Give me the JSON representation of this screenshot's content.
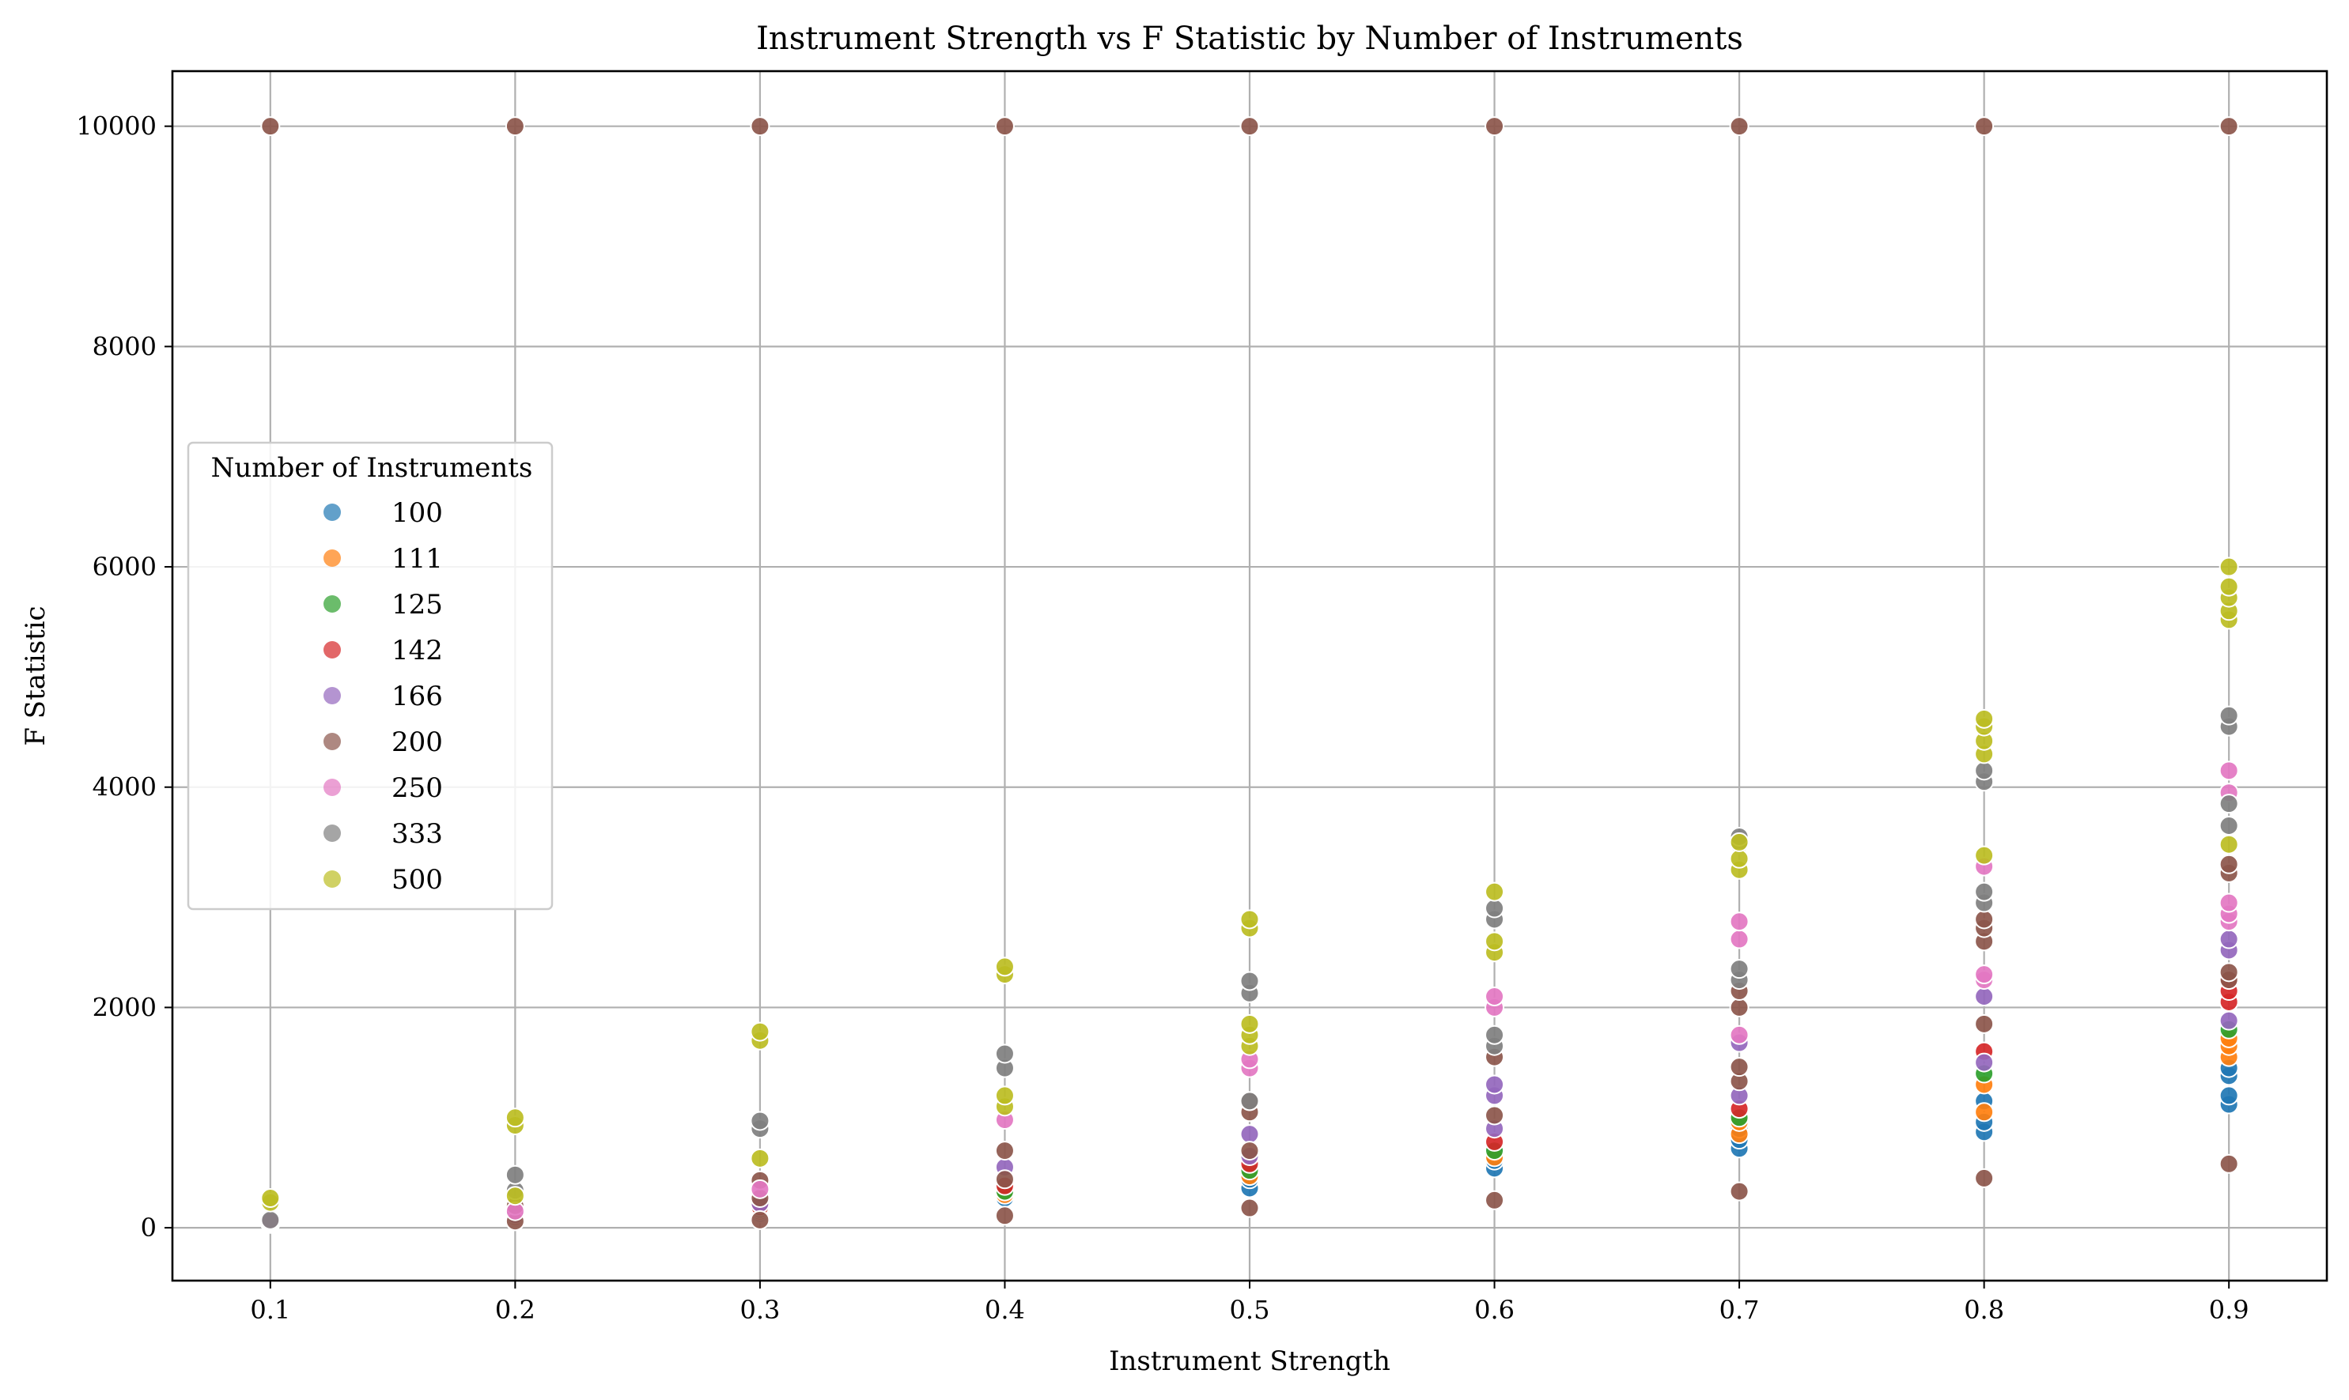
{
  "chart_data": {
    "type": "scatter",
    "title": "Instrument Strength vs F Statistic by Number of Instruments",
    "xlabel": "Instrument Strength",
    "ylabel": "F Statistic",
    "xlim": [
      0.06,
      0.94
    ],
    "ylim": [
      -480,
      10500
    ],
    "xticks": [
      0.1,
      0.2,
      0.3,
      0.4,
      0.5,
      0.6,
      0.7,
      0.8,
      0.9
    ],
    "xtick_labels": [
      "0.1",
      "0.2",
      "0.3",
      "0.4",
      "0.5",
      "0.6",
      "0.7",
      "0.8",
      "0.9"
    ],
    "yticks": [
      0,
      2000,
      4000,
      6000,
      8000,
      10000
    ],
    "ytick_labels": [
      "0",
      "2000",
      "4000",
      "6000",
      "8000",
      "10000"
    ],
    "grid": true,
    "legend": {
      "title": "Number of Instruments",
      "placement": "center-left"
    },
    "series": [
      {
        "name": "100",
        "color": "#1f77b4",
        "points": [
          [
            0.1,
            35
          ],
          [
            0.2,
            60
          ],
          [
            0.3,
            130
          ],
          [
            0.4,
            270
          ],
          [
            0.4,
            320
          ],
          [
            0.5,
            360
          ],
          [
            0.5,
            440
          ],
          [
            0.6,
            540
          ],
          [
            0.6,
            610
          ],
          [
            0.6,
            690
          ],
          [
            0.7,
            720
          ],
          [
            0.7,
            800
          ],
          [
            0.7,
            900
          ],
          [
            0.8,
            870
          ],
          [
            0.8,
            960
          ],
          [
            0.8,
            1150
          ],
          [
            0.9,
            1120
          ],
          [
            0.9,
            1200
          ],
          [
            0.9,
            1380
          ],
          [
            0.9,
            1450
          ]
        ]
      },
      {
        "name": "111",
        "color": "#ff7f0e",
        "points": [
          [
            0.1,
            40
          ],
          [
            0.2,
            75
          ],
          [
            0.3,
            150
          ],
          [
            0.4,
            300
          ],
          [
            0.5,
            470
          ],
          [
            0.6,
            640
          ],
          [
            0.7,
            850
          ],
          [
            0.7,
            960
          ],
          [
            0.8,
            1050
          ],
          [
            0.8,
            1300
          ],
          [
            0.9,
            1550
          ],
          [
            0.9,
            1650
          ],
          [
            0.9,
            1720
          ]
        ]
      },
      {
        "name": "125",
        "color": "#2ca02c",
        "points": [
          [
            0.1,
            45
          ],
          [
            0.2,
            85
          ],
          [
            0.3,
            170
          ],
          [
            0.4,
            330
          ],
          [
            0.5,
            520
          ],
          [
            0.6,
            700
          ],
          [
            0.7,
            1000
          ],
          [
            0.8,
            1400
          ],
          [
            0.9,
            1800
          ]
        ]
      },
      {
        "name": "142",
        "color": "#d62728",
        "points": [
          [
            0.1,
            50
          ],
          [
            0.2,
            100
          ],
          [
            0.3,
            190
          ],
          [
            0.4,
            380
          ],
          [
            0.5,
            580
          ],
          [
            0.6,
            780
          ],
          [
            0.7,
            1080
          ],
          [
            0.8,
            1600
          ],
          [
            0.9,
            2050
          ],
          [
            0.9,
            2150
          ],
          [
            0.9,
            2250
          ]
        ]
      },
      {
        "name": "166",
        "color": "#9467bd",
        "points": [
          [
            0.1,
            55
          ],
          [
            0.2,
            120
          ],
          [
            0.3,
            220
          ],
          [
            0.4,
            550
          ],
          [
            0.5,
            650
          ],
          [
            0.5,
            850
          ],
          [
            0.6,
            900
          ],
          [
            0.6,
            1200
          ],
          [
            0.6,
            1300
          ],
          [
            0.7,
            1200
          ],
          [
            0.7,
            1680
          ],
          [
            0.8,
            1500
          ],
          [
            0.8,
            2100
          ],
          [
            0.9,
            1880
          ],
          [
            0.9,
            2520
          ],
          [
            0.9,
            2620
          ]
        ]
      },
      {
        "name": "200",
        "color": "#8c564b",
        "points": [
          [
            0.1,
            10000
          ],
          [
            0.2,
            10000
          ],
          [
            0.3,
            10000
          ],
          [
            0.4,
            10000
          ],
          [
            0.5,
            10000
          ],
          [
            0.6,
            10000
          ],
          [
            0.7,
            10000
          ],
          [
            0.8,
            10000
          ],
          [
            0.9,
            10000
          ],
          [
            0.1,
            50
          ],
          [
            0.2,
            60
          ],
          [
            0.2,
            200
          ],
          [
            0.3,
            70
          ],
          [
            0.3,
            270
          ],
          [
            0.3,
            430
          ],
          [
            0.4,
            110
          ],
          [
            0.4,
            440
          ],
          [
            0.4,
            700
          ],
          [
            0.5,
            180
          ],
          [
            0.5,
            700
          ],
          [
            0.5,
            1050
          ],
          [
            0.5,
            1150
          ],
          [
            0.6,
            250
          ],
          [
            0.6,
            1020
          ],
          [
            0.6,
            1550
          ],
          [
            0.7,
            330
          ],
          [
            0.7,
            1330
          ],
          [
            0.7,
            1460
          ],
          [
            0.7,
            2000
          ],
          [
            0.7,
            2150
          ],
          [
            0.8,
            450
          ],
          [
            0.8,
            1850
          ],
          [
            0.8,
            2600
          ],
          [
            0.8,
            2720
          ],
          [
            0.8,
            2800
          ],
          [
            0.9,
            580
          ],
          [
            0.9,
            2250
          ],
          [
            0.9,
            2320
          ],
          [
            0.9,
            3220
          ],
          [
            0.9,
            3300
          ]
        ]
      },
      {
        "name": "250",
        "color": "#e377c2",
        "points": [
          [
            0.1,
            60
          ],
          [
            0.2,
            150
          ],
          [
            0.3,
            350
          ],
          [
            0.4,
            980
          ],
          [
            0.5,
            1450
          ],
          [
            0.5,
            1530
          ],
          [
            0.6,
            2000
          ],
          [
            0.6,
            2100
          ],
          [
            0.7,
            1750
          ],
          [
            0.7,
            2620
          ],
          [
            0.7,
            2780
          ],
          [
            0.8,
            2250
          ],
          [
            0.8,
            2300
          ],
          [
            0.8,
            3280
          ],
          [
            0.9,
            2780
          ],
          [
            0.9,
            2850
          ],
          [
            0.9,
            2950
          ],
          [
            0.9,
            3950
          ],
          [
            0.9,
            4150
          ]
        ]
      },
      {
        "name": "333",
        "color": "#7f7f7f",
        "points": [
          [
            0.1,
            70
          ],
          [
            0.2,
            340
          ],
          [
            0.2,
            480
          ],
          [
            0.3,
            900
          ],
          [
            0.3,
            970
          ],
          [
            0.4,
            1450
          ],
          [
            0.4,
            1580
          ],
          [
            0.5,
            1150
          ],
          [
            0.5,
            2130
          ],
          [
            0.5,
            2240
          ],
          [
            0.6,
            1650
          ],
          [
            0.6,
            1750
          ],
          [
            0.6,
            2800
          ],
          [
            0.6,
            2900
          ],
          [
            0.7,
            2250
          ],
          [
            0.7,
            2350
          ],
          [
            0.7,
            3480
          ],
          [
            0.7,
            3550
          ],
          [
            0.8,
            2950
          ],
          [
            0.8,
            3050
          ],
          [
            0.8,
            4050
          ],
          [
            0.8,
            4150
          ],
          [
            0.9,
            3650
          ],
          [
            0.9,
            3850
          ],
          [
            0.9,
            4550
          ],
          [
            0.9,
            4650
          ]
        ]
      },
      {
        "name": "500",
        "color": "#bcbd22",
        "points": [
          [
            0.1,
            230
          ],
          [
            0.1,
            270
          ],
          [
            0.2,
            930
          ],
          [
            0.2,
            1000
          ],
          [
            0.2,
            290
          ],
          [
            0.3,
            1700
          ],
          [
            0.3,
            1780
          ],
          [
            0.3,
            630
          ],
          [
            0.4,
            2300
          ],
          [
            0.4,
            2370
          ],
          [
            0.4,
            1100
          ],
          [
            0.4,
            1200
          ],
          [
            0.5,
            1650
          ],
          [
            0.5,
            1750
          ],
          [
            0.5,
            1850
          ],
          [
            0.5,
            2720
          ],
          [
            0.5,
            2800
          ],
          [
            0.6,
            2500
          ],
          [
            0.6,
            2600
          ],
          [
            0.6,
            3050
          ],
          [
            0.7,
            3250
          ],
          [
            0.7,
            3350
          ],
          [
            0.7,
            3500
          ],
          [
            0.8,
            3380
          ],
          [
            0.8,
            4300
          ],
          [
            0.8,
            4420
          ],
          [
            0.8,
            4550
          ],
          [
            0.8,
            4620
          ],
          [
            0.9,
            3480
          ],
          [
            0.9,
            5520
          ],
          [
            0.9,
            5600
          ],
          [
            0.9,
            5720
          ],
          [
            0.9,
            5820
          ],
          [
            0.9,
            6000
          ]
        ]
      }
    ]
  }
}
